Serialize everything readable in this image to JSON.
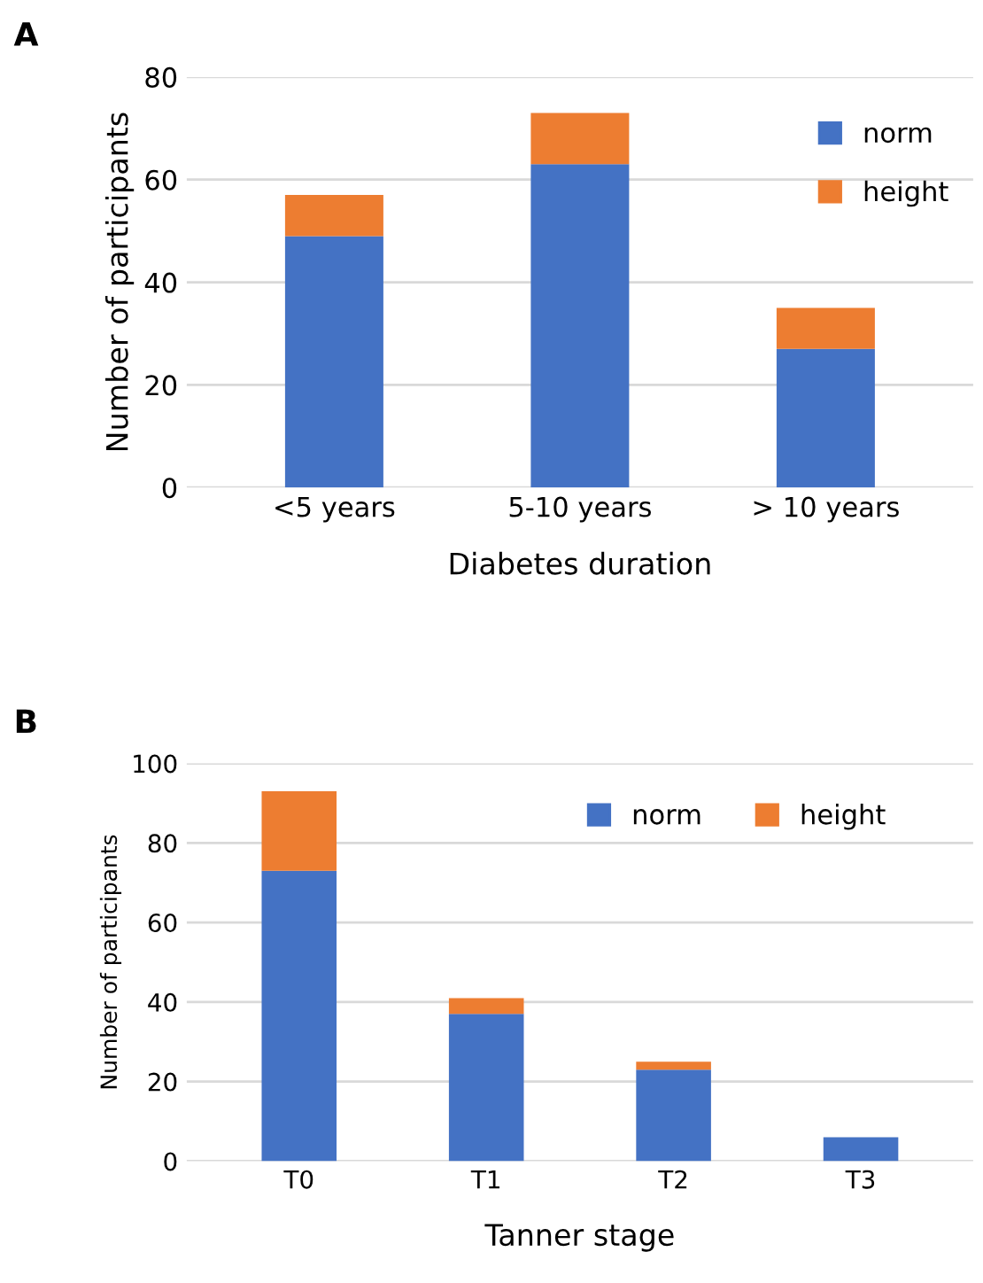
{
  "chart_data": [
    {
      "type": "bar",
      "stacked": true,
      "annotations": [
        "A"
      ],
      "xlabel": "Diabetes duration",
      "ylabel": "Number of participants",
      "categories": [
        "<5 years",
        "5-10 years",
        "> 10 years"
      ],
      "series": [
        {
          "name": "norm",
          "color": "#4472c4",
          "values": [
            49,
            63,
            27
          ]
        },
        {
          "name": "height",
          "color": "#ed7d31",
          "values": [
            8,
            10,
            8
          ]
        }
      ],
      "ylim": [
        0,
        80
      ],
      "yticks": [
        0,
        20,
        40,
        60,
        80
      ],
      "grid": "y",
      "legend": "top right"
    },
    {
      "type": "bar",
      "stacked": true,
      "annotations": [
        "B"
      ],
      "xlabel": "Tanner stage",
      "ylabel": "Number of participants",
      "categories": [
        "T0",
        "T1",
        "T2",
        "T3"
      ],
      "series": [
        {
          "name": "norm",
          "color": "#4472c4",
          "values": [
            73,
            37,
            23,
            6
          ]
        },
        {
          "name": "height",
          "color": "#ed7d31",
          "values": [
            20,
            4,
            2,
            0
          ]
        }
      ],
      "ylim": [
        0,
        100
      ],
      "yticks": [
        0,
        20,
        40,
        60,
        80,
        100
      ],
      "grid": "y",
      "legend": "top"
    }
  ]
}
